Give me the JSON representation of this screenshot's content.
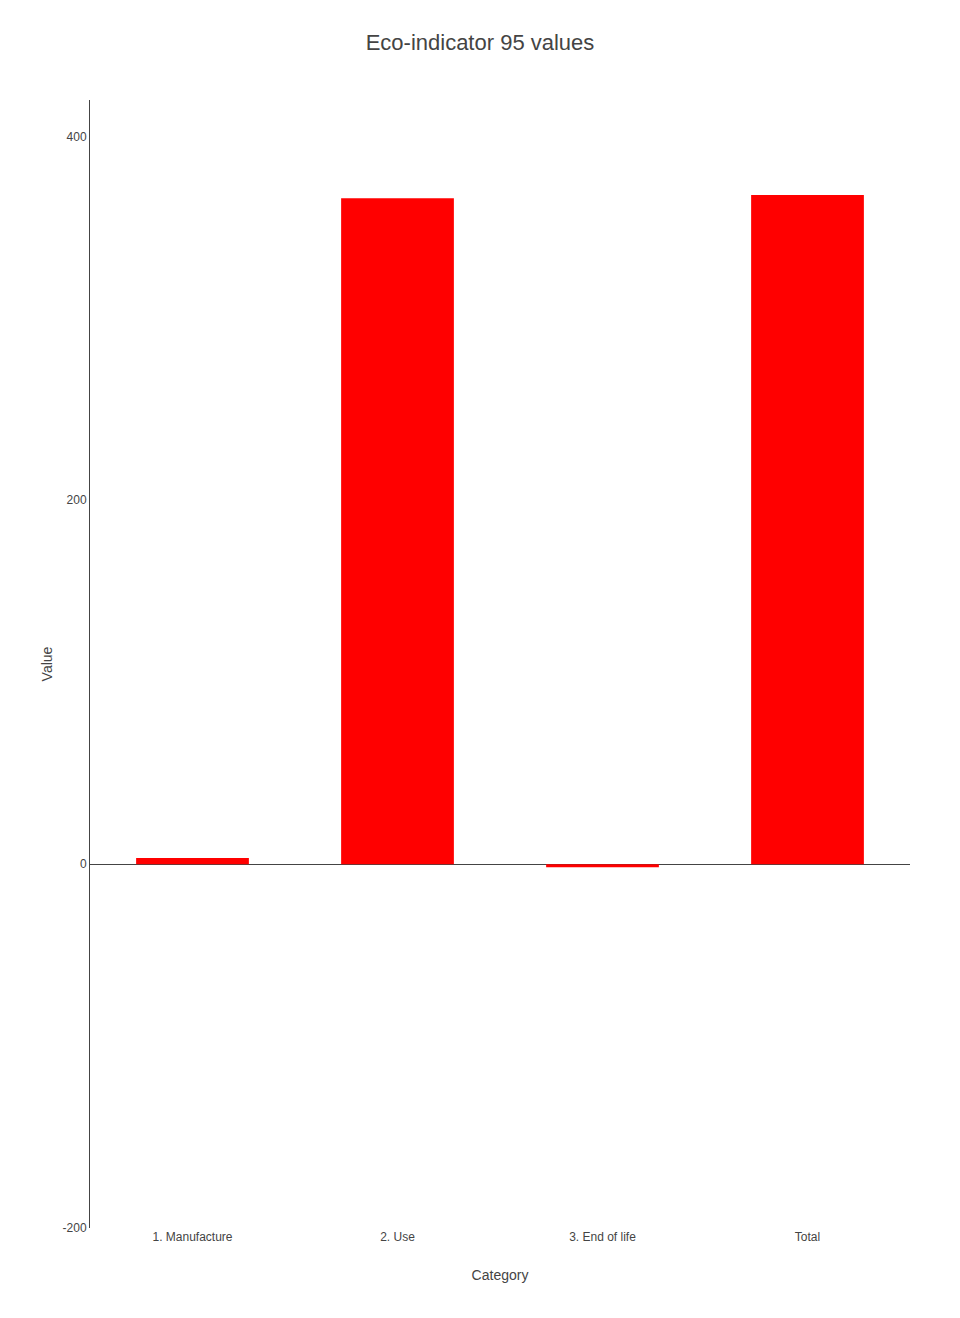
{
  "chart_data": {
    "type": "bar",
    "title": "Eco-indicator 95 values",
    "xlabel": "Category",
    "ylabel": "Value",
    "categories": [
      "1. Manufacture",
      "2. Use",
      "3. End of life",
      "Total"
    ],
    "values": [
      3.4197,
      365.9707,
      -1.6532,
      367.737
    ],
    "color": "#ff0000",
    "ylim": [
      -200,
      420
    ],
    "yticks": [
      -200,
      0,
      200,
      400
    ],
    "grid": false
  }
}
